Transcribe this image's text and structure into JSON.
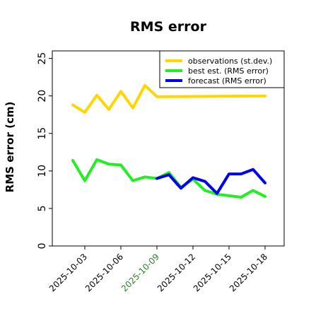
{
  "chart_data": {
    "type": "line",
    "title": "RMS error",
    "ylabel": "RMS error (cm)",
    "xlabel": "",
    "ylim": [
      0,
      26
    ],
    "yticks": [
      0,
      5,
      10,
      15,
      20,
      25
    ],
    "x": [
      "2025-10-02",
      "2025-10-03",
      "2025-10-04",
      "2025-10-05",
      "2025-10-06",
      "2025-10-07",
      "2025-10-08",
      "2025-10-09",
      "2025-10-10",
      "2025-10-11",
      "2025-10-12",
      "2025-10-13",
      "2025-10-14",
      "2025-10-15",
      "2025-10-16",
      "2025-10-17",
      "2025-10-18"
    ],
    "xticks": [
      {
        "label": "2025-10-03",
        "color": "#000000"
      },
      {
        "label": "2025-10-06",
        "color": "#000000"
      },
      {
        "label": "2025-10-09",
        "color": "#2a7f2a"
      },
      {
        "label": "2025-10-12",
        "color": "#000000"
      },
      {
        "label": "2025-10-15",
        "color": "#000000"
      },
      {
        "label": "2025-10-18",
        "color": "#000000"
      }
    ],
    "legend_position": "top-right",
    "grid": false,
    "series": [
      {
        "name": "observations (st.dev.)",
        "color": "#ffd700",
        "x": [
          "2025-10-02",
          "2025-10-03",
          "2025-10-04",
          "2025-10-05",
          "2025-10-06",
          "2025-10-07",
          "2025-10-08",
          "2025-10-09",
          "2025-10-18"
        ],
        "values": [
          18.8,
          17.8,
          20.1,
          18.2,
          20.6,
          18.4,
          21.4,
          19.9,
          20.0
        ]
      },
      {
        "name": "best est. (RMS error)",
        "color": "#22ee22",
        "x": [
          "2025-10-02",
          "2025-10-03",
          "2025-10-04",
          "2025-10-05",
          "2025-10-06",
          "2025-10-07",
          "2025-10-08",
          "2025-10-09",
          "2025-10-10",
          "2025-10-11",
          "2025-10-12",
          "2025-10-13",
          "2025-10-14",
          "2025-10-15",
          "2025-10-16",
          "2025-10-17",
          "2025-10-18"
        ],
        "values": [
          11.4,
          8.7,
          11.5,
          10.9,
          10.8,
          8.7,
          9.2,
          9.0,
          9.8,
          7.8,
          8.9,
          7.4,
          6.9,
          6.7,
          6.5,
          7.4,
          6.6
        ]
      },
      {
        "name": "forecast (RMS error)",
        "color": "#0000ee",
        "x": [
          "2025-10-09",
          "2025-10-10",
          "2025-10-11",
          "2025-10-12",
          "2025-10-13",
          "2025-10-14",
          "2025-10-15",
          "2025-10-16",
          "2025-10-17",
          "2025-10-18"
        ],
        "values": [
          9.0,
          9.5,
          7.7,
          9.1,
          8.6,
          7.0,
          9.6,
          9.6,
          10.2,
          8.4
        ]
      }
    ]
  }
}
